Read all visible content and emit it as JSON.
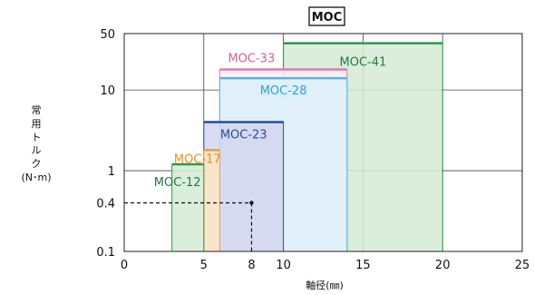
{
  "chart_data": {
    "type": "bar",
    "title": "MOC",
    "xlabel": "軸径(㎜)",
    "ylabel_lines": [
      "常",
      "用",
      "ト",
      "ル",
      "ク",
      "(N･m)"
    ],
    "xlim": [
      0,
      25
    ],
    "ylim": [
      0.1,
      50
    ],
    "yscale": "log",
    "grid": true,
    "x_ticks": [
      {
        "value": 0,
        "label": "0"
      },
      {
        "value": 5,
        "label": "5"
      },
      {
        "value": 8,
        "label": "8"
      },
      {
        "value": 10,
        "label": "10"
      },
      {
        "value": 15,
        "label": "15"
      },
      {
        "value": 20,
        "label": "20"
      },
      {
        "value": 25,
        "label": "25"
      }
    ],
    "y_ticks": [
      {
        "value": 0.1,
        "label": "0.1"
      },
      {
        "value": 0.4,
        "label": "0.4"
      },
      {
        "value": 1,
        "label": "1"
      },
      {
        "value": 10,
        "label": "10"
      },
      {
        "value": 50,
        "label": "50"
      }
    ],
    "series": [
      {
        "name": "MOC-41",
        "x_min": 10,
        "x_max": 20,
        "torque": 38,
        "stroke": "#2a9a48",
        "fill": "#d4ebd5",
        "label_color": "#237a3c"
      },
      {
        "name": "MOC-33",
        "x_min": 6,
        "x_max": 14,
        "torque": 18,
        "stroke": "#e07aa8",
        "fill": "#fbeef4",
        "label_color": "#d45f94"
      },
      {
        "name": "MOC-28",
        "x_min": 6,
        "x_max": 14,
        "torque": 14,
        "stroke": "#52b7e0",
        "fill": "#ddf0fa",
        "label_color": "#2aa5d8"
      },
      {
        "name": "MOC-23",
        "x_min": 5,
        "x_max": 10,
        "torque": 4,
        "stroke": "#1e4fa0",
        "fill": "#d4d6ee",
        "label_color": "#1e4fa0"
      },
      {
        "name": "MOC-17",
        "x_min": 5,
        "x_max": 6,
        "torque": 1.8,
        "stroke": "#f0a030",
        "fill": "#fde6c6",
        "label_color": "#e8901a"
      },
      {
        "name": "MOC-12",
        "x_min": 3,
        "x_max": 5,
        "torque": 1.2,
        "stroke": "#2a9a48",
        "fill": "#d4ebd5",
        "label_color": "#237a3c"
      }
    ],
    "reference_point": {
      "x": 8,
      "y": 0.4
    }
  }
}
